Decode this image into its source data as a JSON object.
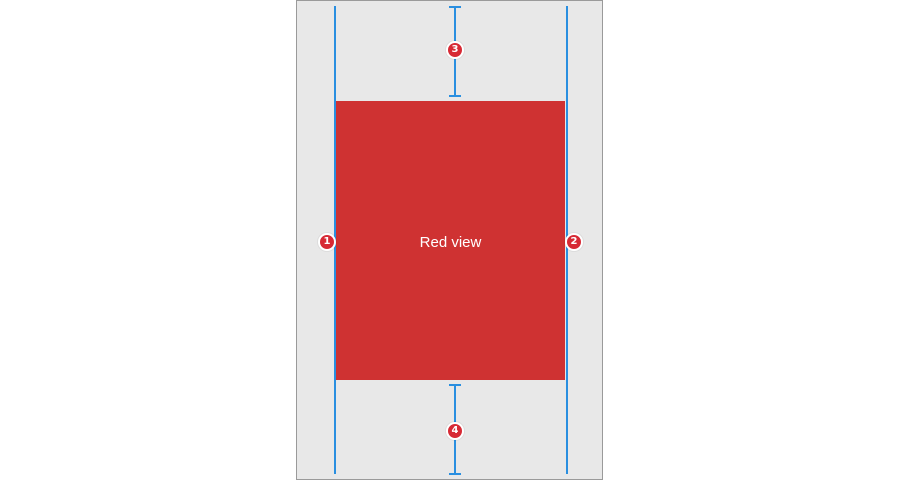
{
  "red_view": {
    "label": "Red view",
    "color": "#cf3232"
  },
  "constraints": [
    {
      "number": "1",
      "kind": "leading-edge"
    },
    {
      "number": "2",
      "kind": "trailing-edge"
    },
    {
      "number": "3",
      "kind": "top-spacing"
    },
    {
      "number": "4",
      "kind": "bottom-spacing"
    }
  ],
  "colors": {
    "guide": "#2a8fe0",
    "marker": "#d72a35",
    "screen_bg": "#e8e8e8"
  }
}
